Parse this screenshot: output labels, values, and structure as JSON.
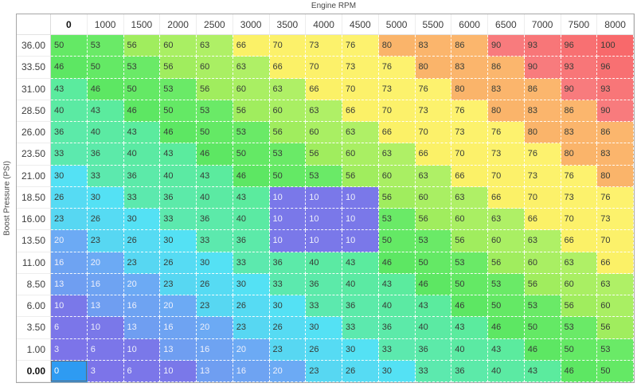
{
  "axes": {
    "x_label": "Engine RPM",
    "y_label": "Boost Pressure (PSI)"
  },
  "table": {
    "column_headers": [
      "0",
      "1000",
      "1500",
      "2000",
      "2500",
      "3000",
      "3500",
      "4000",
      "4500",
      "5000",
      "5500",
      "6000",
      "6500",
      "7000",
      "7500",
      "8000"
    ],
    "row_headers": [
      "36.00",
      "33.50",
      "31.00",
      "28.50",
      "26.00",
      "23.50",
      "21.00",
      "18.50",
      "16.00",
      "13.50",
      "11.00",
      "8.50",
      "6.00",
      "3.50",
      "1.00",
      "0.00"
    ],
    "rows": [
      [
        50,
        53,
        56,
        60,
        63,
        66,
        70,
        73,
        76,
        80,
        83,
        86,
        90,
        93,
        96,
        100
      ],
      [
        46,
        50,
        53,
        56,
        60,
        63,
        66,
        70,
        73,
        76,
        80,
        83,
        86,
        90,
        93,
        96
      ],
      [
        43,
        46,
        50,
        53,
        56,
        60,
        63,
        66,
        70,
        73,
        76,
        80,
        83,
        86,
        90,
        93
      ],
      [
        40,
        43,
        46,
        50,
        53,
        56,
        60,
        63,
        66,
        70,
        73,
        76,
        80,
        83,
        86,
        90
      ],
      [
        36,
        40,
        43,
        46,
        50,
        53,
        56,
        60,
        63,
        66,
        70,
        73,
        76,
        80,
        83,
        86
      ],
      [
        33,
        36,
        40,
        43,
        46,
        50,
        53,
        56,
        60,
        63,
        66,
        70,
        73,
        76,
        80,
        83
      ],
      [
        30,
        33,
        36,
        40,
        43,
        46,
        50,
        53,
        56,
        60,
        63,
        66,
        70,
        73,
        76,
        80
      ],
      [
        26,
        30,
        33,
        36,
        40,
        43,
        10,
        10,
        10,
        56,
        60,
        63,
        66,
        70,
        73,
        76
      ],
      [
        23,
        26,
        30,
        33,
        36,
        40,
        10,
        10,
        10,
        53,
        56,
        60,
        63,
        66,
        70,
        73
      ],
      [
        20,
        23,
        26,
        30,
        33,
        36,
        10,
        10,
        10,
        50,
        53,
        56,
        60,
        63,
        66,
        70
      ],
      [
        16,
        20,
        23,
        26,
        30,
        33,
        36,
        40,
        43,
        46,
        50,
        53,
        56,
        60,
        63,
        66
      ],
      [
        13,
        16,
        20,
        23,
        26,
        30,
        33,
        36,
        40,
        43,
        46,
        50,
        53,
        56,
        60,
        63
      ],
      [
        10,
        13,
        16,
        20,
        23,
        26,
        30,
        33,
        36,
        40,
        43,
        46,
        50,
        53,
        56,
        60
      ],
      [
        6,
        10,
        13,
        16,
        20,
        23,
        26,
        30,
        33,
        36,
        40,
        43,
        46,
        50,
        53,
        56
      ],
      [
        3,
        6,
        10,
        13,
        16,
        20,
        23,
        26,
        30,
        33,
        36,
        40,
        43,
        46,
        50,
        53
      ],
      [
        0,
        3,
        6,
        10,
        13,
        16,
        20,
        23,
        26,
        30,
        33,
        36,
        40,
        43,
        46,
        50
      ]
    ],
    "selected_cell": {
      "row_index": 15,
      "col_index": 0,
      "value": 0
    }
  },
  "colors": {
    "selected_fill": "#2e9bf2",
    "selected_border": "#636b74",
    "text_dark": "#373c37",
    "text_light": "#eef0fc",
    "light_text_max_value": 20,
    "scale": [
      {
        "v": 0,
        "c": "#8070ec"
      },
      {
        "v": 3,
        "c": "#7c74e9"
      },
      {
        "v": 10,
        "c": "#7a78e9"
      },
      {
        "v": 13,
        "c": "#6f9ef1"
      },
      {
        "v": 20,
        "c": "#6caaf4"
      },
      {
        "v": 23,
        "c": "#57d7f2"
      },
      {
        "v": 30,
        "c": "#54e1f4"
      },
      {
        "v": 33,
        "c": "#5ce9ae"
      },
      {
        "v": 43,
        "c": "#5beb9e"
      },
      {
        "v": 46,
        "c": "#5de763"
      },
      {
        "v": 53,
        "c": "#6aea67"
      },
      {
        "v": 56,
        "c": "#a0ed5e"
      },
      {
        "v": 63,
        "c": "#aff066"
      },
      {
        "v": 66,
        "c": "#fbf167"
      },
      {
        "v": 76,
        "c": "#fdf26e"
      },
      {
        "v": 80,
        "c": "#fab46a"
      },
      {
        "v": 86,
        "c": "#fbb66d"
      },
      {
        "v": 90,
        "c": "#f87b7d"
      },
      {
        "v": 100,
        "c": "#f8696b"
      }
    ]
  },
  "chart_data": {
    "type": "heatmap",
    "title": "",
    "xlabel": "Engine RPM",
    "ylabel": "Boost Pressure (PSI)",
    "x_categories": [
      0,
      1000,
      1500,
      2000,
      2500,
      3000,
      3500,
      4000,
      4500,
      5000,
      5500,
      6000,
      6500,
      7000,
      7500,
      8000
    ],
    "y_categories": [
      36.0,
      33.5,
      31.0,
      28.5,
      26.0,
      23.5,
      21.0,
      18.5,
      16.0,
      13.5,
      11.0,
      8.5,
      6.0,
      3.5,
      1.0,
      0.0
    ],
    "values": [
      [
        50,
        53,
        56,
        60,
        63,
        66,
        70,
        73,
        76,
        80,
        83,
        86,
        90,
        93,
        96,
        100
      ],
      [
        46,
        50,
        53,
        56,
        60,
        63,
        66,
        70,
        73,
        76,
        80,
        83,
        86,
        90,
        93,
        96
      ],
      [
        43,
        46,
        50,
        53,
        56,
        60,
        63,
        66,
        70,
        73,
        76,
        80,
        83,
        86,
        90,
        93
      ],
      [
        40,
        43,
        46,
        50,
        53,
        56,
        60,
        63,
        66,
        70,
        73,
        76,
        80,
        83,
        86,
        90
      ],
      [
        36,
        40,
        43,
        46,
        50,
        53,
        56,
        60,
        63,
        66,
        70,
        73,
        76,
        80,
        83,
        86
      ],
      [
        33,
        36,
        40,
        43,
        46,
        50,
        53,
        56,
        60,
        63,
        66,
        70,
        73,
        76,
        80,
        83
      ],
      [
        30,
        33,
        36,
        40,
        43,
        46,
        50,
        53,
        56,
        60,
        63,
        66,
        70,
        73,
        76,
        80
      ],
      [
        26,
        30,
        33,
        36,
        40,
        43,
        10,
        10,
        10,
        56,
        60,
        63,
        66,
        70,
        73,
        76
      ],
      [
        23,
        26,
        30,
        33,
        36,
        40,
        10,
        10,
        10,
        53,
        56,
        60,
        63,
        66,
        70,
        73
      ],
      [
        20,
        23,
        26,
        30,
        33,
        36,
        10,
        10,
        10,
        50,
        53,
        56,
        60,
        63,
        66,
        70
      ],
      [
        16,
        20,
        23,
        26,
        30,
        33,
        36,
        40,
        43,
        46,
        50,
        53,
        56,
        60,
        63,
        66
      ],
      [
        13,
        16,
        20,
        23,
        26,
        30,
        33,
        36,
        40,
        43,
        46,
        50,
        53,
        56,
        60,
        63
      ],
      [
        10,
        13,
        16,
        20,
        23,
        26,
        30,
        33,
        36,
        40,
        43,
        46,
        50,
        53,
        56,
        60
      ],
      [
        6,
        10,
        13,
        16,
        20,
        23,
        26,
        30,
        33,
        36,
        40,
        43,
        46,
        50,
        53,
        56
      ],
      [
        3,
        6,
        10,
        13,
        16,
        20,
        23,
        26,
        30,
        33,
        36,
        40,
        43,
        46,
        50,
        53
      ],
      [
        0,
        3,
        6,
        10,
        13,
        16,
        20,
        23,
        26,
        30,
        33,
        36,
        40,
        43,
        46,
        50
      ]
    ],
    "legend": "none",
    "grid": "white dashed cell borders"
  }
}
